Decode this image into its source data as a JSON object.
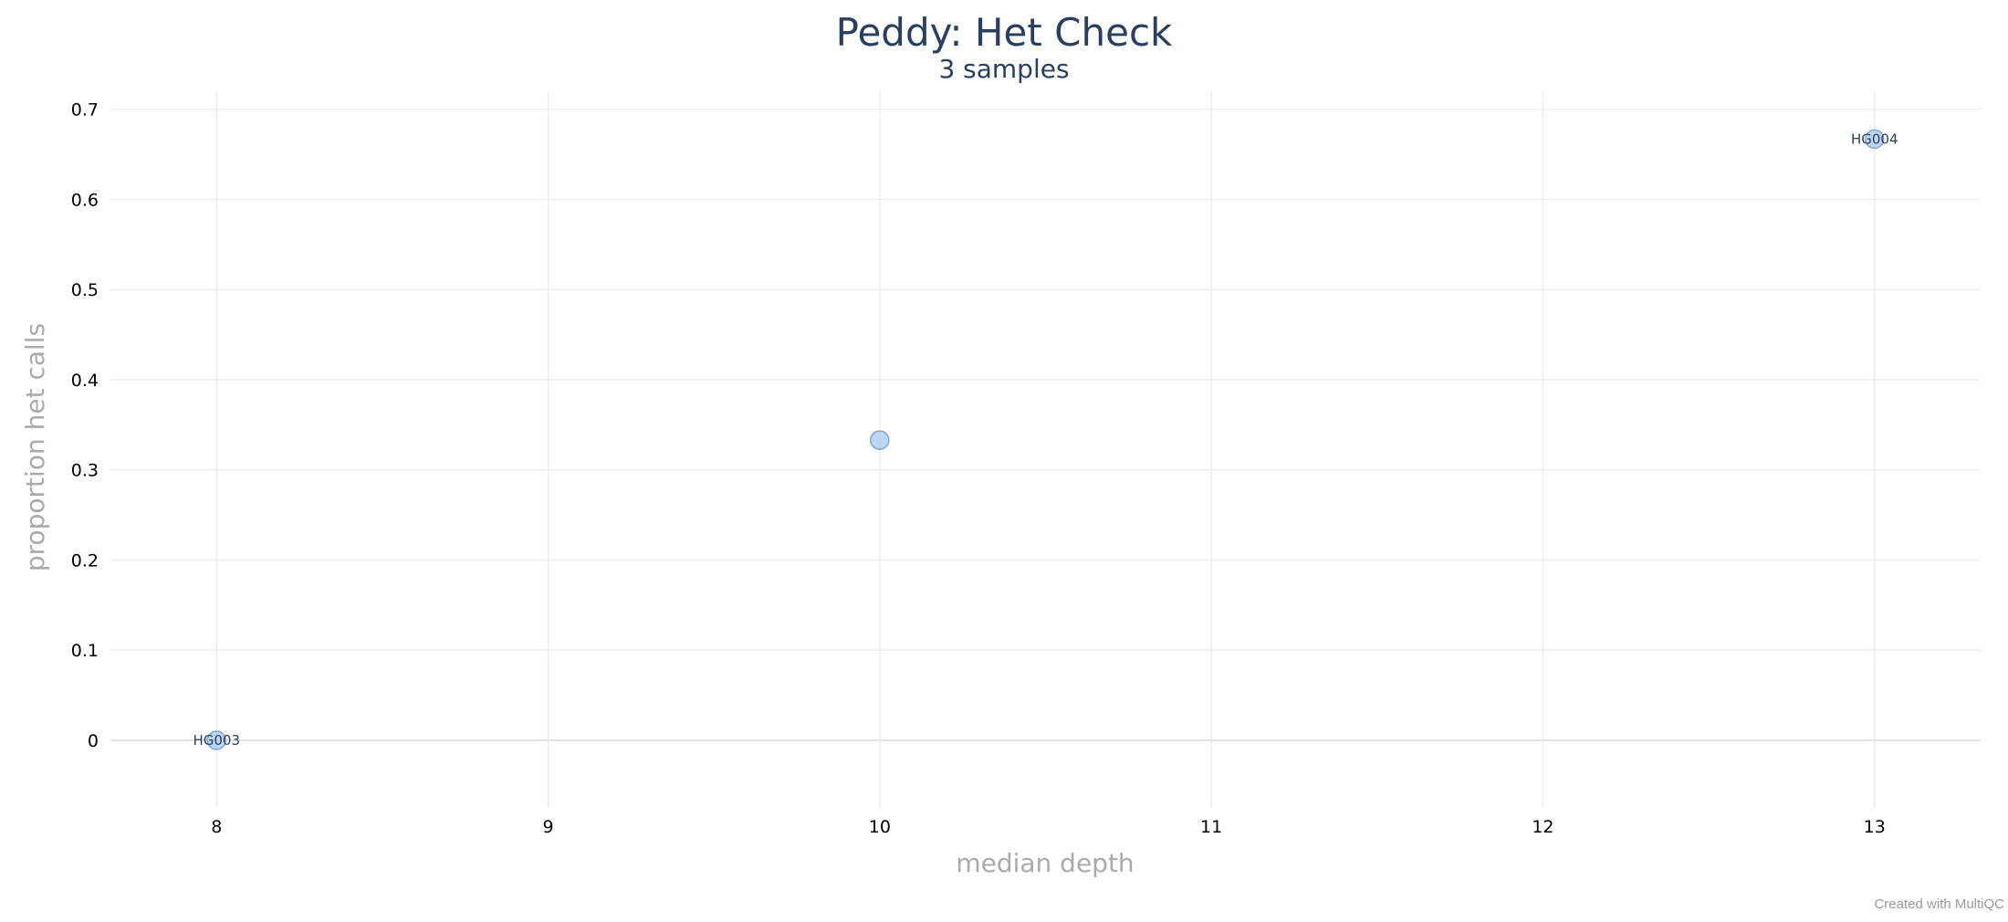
{
  "chart_data": {
    "type": "scatter",
    "title": "Peddy: Het Check",
    "subtitle": "3 samples",
    "xlabel": "median depth",
    "ylabel": "proportion het calls",
    "xlim": [
      7.68,
      13.32
    ],
    "ylim": [
      -0.075,
      0.72
    ],
    "xticks": [
      8,
      9,
      10,
      11,
      12,
      13
    ],
    "yticks": [
      0,
      0.1,
      0.2,
      0.3,
      0.4,
      0.5,
      0.6,
      0.7
    ],
    "ytick_labels": [
      "0",
      "0.1",
      "0.2",
      "0.3",
      "0.4",
      "0.5",
      "0.6",
      "0.7"
    ],
    "grid": true,
    "marker_color": "#a8c8ec",
    "marker_edge": "#7ea6d6",
    "points": [
      {
        "x": 8,
        "y": 0.0,
        "label": "HG003"
      },
      {
        "x": 10,
        "y": 0.333,
        "label": ""
      },
      {
        "x": 13,
        "y": 0.667,
        "label": "HG004"
      }
    ]
  },
  "credit": "Created with MultiQC"
}
